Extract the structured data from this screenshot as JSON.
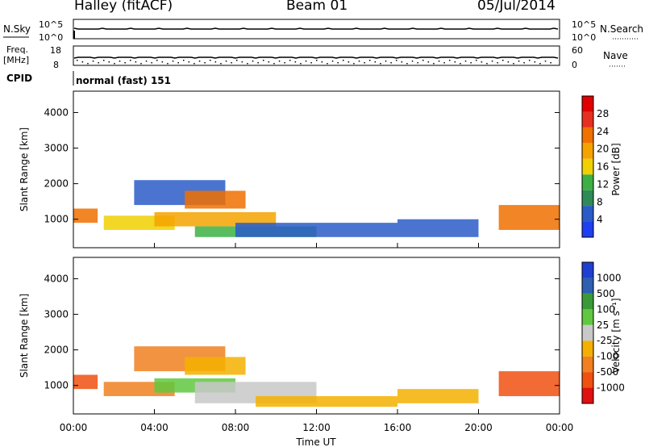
{
  "header": {
    "station": "Halley (fitACF)",
    "beam": "Beam 01",
    "date": "05/Jul/2014"
  },
  "strips": {
    "nsky_label": "N.Sky",
    "nsky_ticks": [
      "10^5",
      "10^0"
    ],
    "nsearch_label": "N.Search",
    "nsearch_ticks": [
      "10^5",
      "10^0"
    ],
    "freq_label_1": "Freq.",
    "freq_label_2": "[MHz]",
    "freq_ticks": [
      "18",
      "8"
    ],
    "nave_label": "Nave",
    "nave_ticks": [
      "60",
      "0"
    ],
    "cpid_label": "CPID",
    "cpid_text": "normal (fast) 151"
  },
  "colors": {
    "power": [
      "#1f3ff0",
      "#2a5cc8",
      "#2e8b57",
      "#3cb043",
      "#f0d000",
      "#f4a300",
      "#f07000",
      "#e83020",
      "#e00000"
    ],
    "velocity": [
      "#e01010",
      "#f05010",
      "#f08020",
      "#f4b000",
      "#c8c8c8",
      "#60c840",
      "#3a9a3a",
      "#2e5fb0",
      "#1f3fd0"
    ]
  },
  "chart_data": [
    {
      "type": "heatmap",
      "name_panel": "power",
      "ylabel": "Slant Range [km]",
      "y_ticks": [
        "1000",
        "2000",
        "3000",
        "4000"
      ],
      "ylim": [
        200,
        4600
      ],
      "xlim": [
        0,
        24
      ],
      "colorbar_label": "Power [dB]",
      "colorbar_ticks": [
        "4",
        "8",
        "12",
        "16",
        "20",
        "24",
        "28"
      ],
      "regions": [
        {
          "t0": 0.0,
          "t1": 1.2,
          "r0": 900,
          "r1": 1300,
          "level": 6
        },
        {
          "t0": 1.5,
          "t1": 5.0,
          "r0": 700,
          "r1": 1100,
          "level": 4
        },
        {
          "t0": 3.0,
          "t1": 7.5,
          "r0": 1400,
          "r1": 2100,
          "level": 1
        },
        {
          "t0": 5.5,
          "t1": 8.5,
          "r0": 1300,
          "r1": 1800,
          "level": 6
        },
        {
          "t0": 4.0,
          "t1": 10.0,
          "r0": 800,
          "r1": 1200,
          "level": 5
        },
        {
          "t0": 6.0,
          "t1": 12.0,
          "r0": 500,
          "r1": 800,
          "level": 3
        },
        {
          "t0": 8.0,
          "t1": 16.0,
          "r0": 500,
          "r1": 900,
          "level": 1
        },
        {
          "t0": 16.0,
          "t1": 20.0,
          "r0": 500,
          "r1": 1000,
          "level": 1
        },
        {
          "t0": 21.0,
          "t1": 24.0,
          "r0": 700,
          "r1": 1400,
          "level": 6
        }
      ]
    },
    {
      "type": "heatmap",
      "name_panel": "velocity",
      "ylabel": "Slant Range [km]",
      "y_ticks": [
        "1000",
        "2000",
        "3000",
        "4000"
      ],
      "ylim": [
        200,
        4600
      ],
      "xlim": [
        0,
        24
      ],
      "xlabel": "Time UT",
      "x_ticks": [
        "00:00",
        "04:00",
        "08:00",
        "12:00",
        "16:00",
        "20:00",
        "00:00"
      ],
      "colorbar_label": "Velocity [m s⁻¹]",
      "colorbar_ticks": [
        "-1000",
        "-500",
        "-100",
        "-25",
        "25",
        "100",
        "500",
        "1000"
      ],
      "regions": [
        {
          "t0": 0.0,
          "t1": 1.2,
          "r0": 900,
          "r1": 1300,
          "level": 1
        },
        {
          "t0": 1.5,
          "t1": 5.0,
          "r0": 700,
          "r1": 1100,
          "level": 2
        },
        {
          "t0": 3.0,
          "t1": 7.5,
          "r0": 1400,
          "r1": 2100,
          "level": 2
        },
        {
          "t0": 5.5,
          "t1": 8.5,
          "r0": 1300,
          "r1": 1800,
          "level": 3
        },
        {
          "t0": 4.0,
          "t1": 8.0,
          "r0": 800,
          "r1": 1200,
          "level": 5
        },
        {
          "t0": 6.0,
          "t1": 12.0,
          "r0": 500,
          "r1": 1100,
          "level": 4
        },
        {
          "t0": 9.0,
          "t1": 16.0,
          "r0": 400,
          "r1": 700,
          "level": 3
        },
        {
          "t0": 16.0,
          "t1": 20.0,
          "r0": 500,
          "r1": 900,
          "level": 3
        },
        {
          "t0": 21.0,
          "t1": 24.0,
          "r0": 700,
          "r1": 1400,
          "level": 1
        }
      ]
    }
  ]
}
